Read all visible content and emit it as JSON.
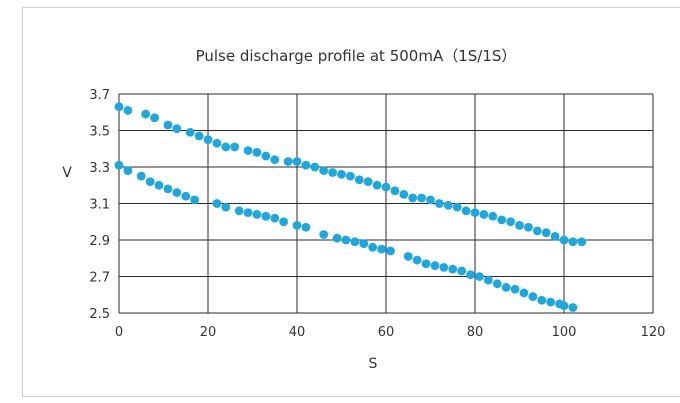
{
  "chart_data": {
    "type": "scatter",
    "title": "Pulse discharge profile at 500mA（1S/1S）",
    "xlabel": "S",
    "ylabel": "V",
    "xlim": [
      0,
      120
    ],
    "ylim": [
      2.5,
      3.7
    ],
    "x_ticks": [
      "0",
      "20",
      "40",
      "60",
      "80",
      "100",
      "120"
    ],
    "y_ticks": [
      "2.5",
      "2.7",
      "2.9",
      "3.1",
      "3.3",
      "3.5",
      "3.7"
    ],
    "grid": true,
    "legend": "none",
    "color": "#1fa6de",
    "series": [
      {
        "x": [
          0,
          2,
          6,
          8,
          11,
          13,
          16,
          18,
          20,
          22,
          24,
          26,
          29,
          31,
          33,
          35,
          38,
          40,
          42,
          44,
          46,
          48,
          50,
          52,
          54,
          56,
          58,
          60,
          62,
          64,
          66,
          68,
          70,
          72,
          74,
          76,
          78,
          80,
          82,
          84,
          86,
          88,
          90,
          92,
          94,
          96,
          98,
          100,
          102,
          104
        ],
        "y": [
          3.63,
          3.61,
          3.59,
          3.57,
          3.53,
          3.51,
          3.49,
          3.47,
          3.45,
          3.43,
          3.41,
          3.41,
          3.39,
          3.38,
          3.36,
          3.34,
          3.33,
          3.33,
          3.31,
          3.3,
          3.28,
          3.27,
          3.26,
          3.25,
          3.23,
          3.22,
          3.2,
          3.19,
          3.17,
          3.15,
          3.13,
          3.13,
          3.12,
          3.1,
          3.09,
          3.08,
          3.06,
          3.05,
          3.04,
          3.03,
          3.01,
          3.0,
          2.98,
          2.97,
          2.95,
          2.94,
          2.92,
          2.9,
          2.89,
          2.89
        ]
      },
      {
        "x": [
          0,
          2,
          5,
          7,
          9,
          11,
          13,
          15,
          17,
          22,
          24,
          27,
          29,
          31,
          33,
          35,
          37,
          40,
          42,
          46,
          49,
          51,
          53,
          55,
          57,
          59,
          61,
          65,
          67,
          69,
          71,
          73,
          75,
          77,
          79,
          81,
          83,
          85,
          87,
          89,
          91,
          93,
          95,
          97,
          99,
          100,
          102
        ],
        "y": [
          3.31,
          3.28,
          3.25,
          3.22,
          3.2,
          3.18,
          3.16,
          3.14,
          3.12,
          3.1,
          3.08,
          3.06,
          3.05,
          3.04,
          3.03,
          3.02,
          3.0,
          2.98,
          2.97,
          2.93,
          2.91,
          2.9,
          2.89,
          2.88,
          2.86,
          2.85,
          2.84,
          2.81,
          2.79,
          2.77,
          2.76,
          2.75,
          2.74,
          2.73,
          2.71,
          2.7,
          2.68,
          2.66,
          2.64,
          2.63,
          2.61,
          2.59,
          2.57,
          2.56,
          2.55,
          2.54,
          2.53
        ]
      }
    ]
  }
}
